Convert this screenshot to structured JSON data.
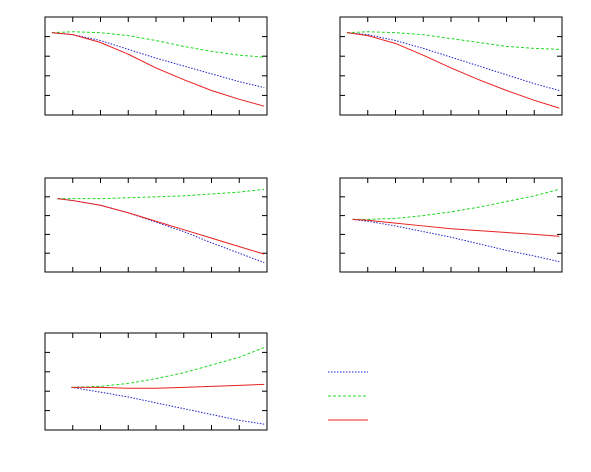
{
  "chart_data": [
    {
      "type": "line",
      "xlim": [
        0,
        8
      ],
      "ylim": [
        0,
        1
      ],
      "xticks": [
        0,
        1,
        2,
        3,
        4,
        5,
        6,
        7,
        8
      ],
      "yticks": [
        0,
        0.2,
        0.4,
        0.6,
        0.8,
        1
      ],
      "x": [
        0.25,
        1,
        2,
        3,
        4,
        5,
        6,
        7,
        7.9
      ],
      "series": [
        {
          "color": "#2020c8",
          "dash": "dotted",
          "values": [
            0.84,
            0.82,
            0.76,
            0.67,
            0.58,
            0.5,
            0.42,
            0.34,
            0.28
          ]
        },
        {
          "color": "#22d822",
          "dash": "dashed",
          "values": [
            0.84,
            0.85,
            0.84,
            0.81,
            0.76,
            0.7,
            0.65,
            0.61,
            0.59
          ]
        },
        {
          "color": "#e82020",
          "dash": "solid",
          "values": [
            0.84,
            0.82,
            0.74,
            0.62,
            0.48,
            0.36,
            0.25,
            0.16,
            0.09
          ]
        }
      ]
    },
    {
      "type": "line",
      "xlim": [
        0,
        8
      ],
      "ylim": [
        0,
        1
      ],
      "xticks": [
        0,
        1,
        2,
        3,
        4,
        5,
        6,
        7,
        8
      ],
      "yticks": [
        0,
        0.2,
        0.4,
        0.6,
        0.8,
        1
      ],
      "x": [
        0.25,
        1,
        2,
        3,
        4,
        5,
        6,
        7,
        7.9
      ],
      "series": [
        {
          "color": "#2020c8",
          "dash": "dotted",
          "values": [
            0.84,
            0.82,
            0.76,
            0.68,
            0.59,
            0.5,
            0.41,
            0.32,
            0.25
          ]
        },
        {
          "color": "#22d822",
          "dash": "dashed",
          "values": [
            0.84,
            0.85,
            0.84,
            0.82,
            0.78,
            0.74,
            0.7,
            0.68,
            0.67
          ]
        },
        {
          "color": "#e82020",
          "dash": "solid",
          "values": [
            0.84,
            0.81,
            0.73,
            0.61,
            0.48,
            0.36,
            0.25,
            0.15,
            0.07
          ]
        }
      ]
    },
    {
      "type": "line",
      "xlim": [
        0,
        8
      ],
      "ylim": [
        0,
        1
      ],
      "xticks": [
        0,
        1,
        2,
        3,
        4,
        5,
        6,
        7,
        8
      ],
      "yticks": [
        0,
        0.2,
        0.4,
        0.6,
        0.8,
        1
      ],
      "x": [
        0.45,
        1,
        2,
        3,
        4,
        5,
        6,
        7,
        7.9
      ],
      "series": [
        {
          "color": "#2020c8",
          "dash": "dotted",
          "values": [
            0.78,
            0.76,
            0.71,
            0.63,
            0.53,
            0.43,
            0.31,
            0.2,
            0.1
          ]
        },
        {
          "color": "#22d822",
          "dash": "dashed",
          "values": [
            0.78,
            0.78,
            0.78,
            0.79,
            0.8,
            0.81,
            0.83,
            0.85,
            0.88
          ]
        },
        {
          "color": "#e82020",
          "dash": "solid",
          "values": [
            0.78,
            0.76,
            0.71,
            0.63,
            0.54,
            0.45,
            0.36,
            0.27,
            0.19
          ]
        }
      ]
    },
    {
      "type": "line",
      "xlim": [
        0,
        8
      ],
      "ylim": [
        0,
        1
      ],
      "xticks": [
        0,
        1,
        2,
        3,
        4,
        5,
        6,
        7,
        8
      ],
      "yticks": [
        0,
        0.2,
        0.4,
        0.6,
        0.8,
        1
      ],
      "x": [
        0.45,
        1,
        2,
        3,
        4,
        5,
        6,
        7,
        7.9
      ],
      "series": [
        {
          "color": "#2020c8",
          "dash": "dotted",
          "values": [
            0.56,
            0.54,
            0.49,
            0.43,
            0.37,
            0.3,
            0.23,
            0.17,
            0.11
          ]
        },
        {
          "color": "#22d822",
          "dash": "dashed",
          "values": [
            0.56,
            0.56,
            0.57,
            0.6,
            0.64,
            0.69,
            0.75,
            0.81,
            0.88
          ]
        },
        {
          "color": "#e82020",
          "dash": "solid",
          "values": [
            0.56,
            0.55,
            0.52,
            0.49,
            0.46,
            0.44,
            0.42,
            0.4,
            0.38
          ]
        }
      ]
    },
    {
      "type": "line",
      "xlim": [
        0,
        8
      ],
      "ylim": [
        0,
        1
      ],
      "xticks": [
        0,
        1,
        2,
        3,
        4,
        5,
        6,
        7,
        8
      ],
      "yticks": [
        0,
        0.2,
        0.4,
        0.6,
        0.8,
        1
      ],
      "x": [
        0.95,
        2,
        3,
        4,
        5,
        6,
        7,
        7.9
      ],
      "series": [
        {
          "color": "#2020c8",
          "dash": "dotted",
          "values": [
            0.44,
            0.39,
            0.34,
            0.28,
            0.22,
            0.16,
            0.1,
            0.06
          ]
        },
        {
          "color": "#22d822",
          "dash": "dashed",
          "values": [
            0.44,
            0.45,
            0.48,
            0.53,
            0.59,
            0.67,
            0.75,
            0.85
          ]
        },
        {
          "color": "#e82020",
          "dash": "solid",
          "values": [
            0.44,
            0.44,
            0.43,
            0.43,
            0.44,
            0.45,
            0.46,
            0.47
          ]
        }
      ]
    }
  ]
}
